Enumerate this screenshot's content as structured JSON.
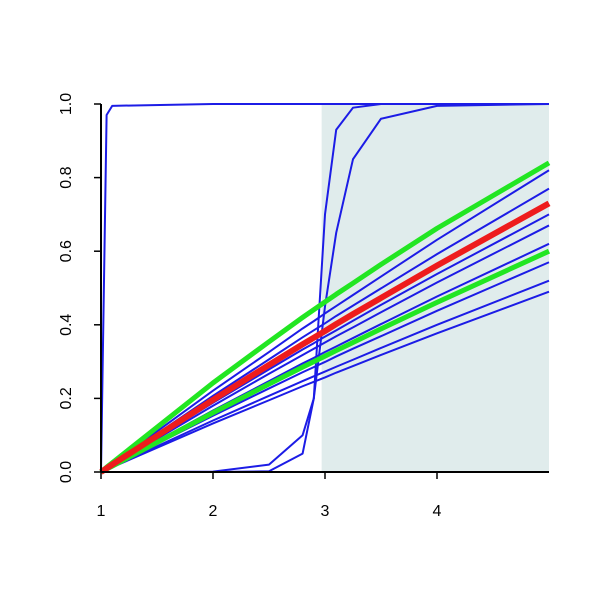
{
  "chart_data": {
    "type": "line",
    "x": [
      1,
      1.05,
      1.1,
      2,
      2.5,
      2.8,
      2.9,
      3,
      3.1,
      3.25,
      3.5,
      4,
      5
    ],
    "xlim": [
      1,
      5
    ],
    "xticks": [
      1,
      2,
      3,
      4
    ],
    "ylim": [
      0,
      1
    ],
    "yticks": [
      {
        "value": 0,
        "label": "0.0"
      },
      {
        "value": 0.2,
        "label": "0.2"
      },
      {
        "value": 0.4,
        "label": "0.4"
      },
      {
        "value": 0.6,
        "label": "0.6"
      },
      {
        "value": 0.8,
        "label": "0.8"
      },
      {
        "value": 1,
        "label": "1.0"
      }
    ],
    "shaded_region": {
      "xlim": [
        2.97,
        5
      ],
      "color": "#e0ecec"
    },
    "series": [
      {
        "color": "#1c1ce6",
        "width": 2,
        "values": [
          0,
          0.011,
          0.022,
          0.221,
          0.326,
          0.39,
          0.41,
          0.431,
          0.451,
          0.481,
          0.531,
          0.631,
          0.82
        ]
      },
      {
        "color": "#1c1ce6",
        "width": 2,
        "values": [
          0,
          0.011,
          0.021,
          0.207,
          0.306,
          0.366,
          0.385,
          0.404,
          0.424,
          0.452,
          0.499,
          0.592,
          0.77
        ]
      },
      {
        "color": "#1c1ce6",
        "width": 2,
        "values": [
          0,
          0.01,
          0.019,
          0.188,
          0.279,
          0.333,
          0.35,
          0.368,
          0.385,
          0.411,
          0.454,
          0.538,
          0.7
        ]
      },
      {
        "color": "#1c1ce6",
        "width": 2,
        "values": [
          0,
          0.009,
          0.018,
          0.18,
          0.267,
          0.318,
          0.335,
          0.352,
          0.369,
          0.393,
          0.434,
          0.515,
          0.67
        ]
      },
      {
        "color": "#1c1ce6",
        "width": 2,
        "values": [
          0,
          0.008,
          0.017,
          0.167,
          0.247,
          0.295,
          0.31,
          0.326,
          0.341,
          0.364,
          0.402,
          0.477,
          0.62
        ]
      },
      {
        "color": "#1c1ce6",
        "width": 2,
        "values": [
          0,
          0.008,
          0.016,
          0.153,
          0.227,
          0.271,
          0.285,
          0.299,
          0.314,
          0.335,
          0.369,
          0.438,
          0.57
        ]
      },
      {
        "color": "#1c1ce6",
        "width": 2,
        "values": [
          0,
          0.007,
          0.014,
          0.14,
          0.207,
          0.247,
          0.26,
          0.273,
          0.286,
          0.305,
          0.337,
          0.4,
          0.52
        ]
      },
      {
        "color": "#1c1ce6",
        "width": 2,
        "values": [
          0,
          0.007,
          0.013,
          0.132,
          0.195,
          0.233,
          0.245,
          0.257,
          0.27,
          0.288,
          0.318,
          0.377,
          0.49
        ]
      },
      {
        "color": "#1c1ce6",
        "width": 2,
        "values": [
          0,
          0.97,
          0.995,
          1,
          1,
          1,
          1,
          1,
          1,
          1,
          1,
          1,
          1
        ]
      },
      {
        "color": "#1c1ce6",
        "width": 2,
        "values": [
          0,
          0,
          0,
          0,
          0.002,
          0.05,
          0.2,
          0.7,
          0.93,
          0.99,
          1,
          1,
          1
        ]
      },
      {
        "color": "#1c1ce6",
        "width": 2,
        "values": [
          0,
          0,
          0,
          0.001,
          0.02,
          0.1,
          0.2,
          0.45,
          0.65,
          0.85,
          0.96,
          0.995,
          1
        ]
      },
      {
        "color": "#22e622",
        "width": 5,
        "values": [
          0,
          0.013,
          0.025,
          0.242,
          0.354,
          0.42,
          0.441,
          0.462,
          0.483,
          0.513,
          0.564,
          0.662,
          0.84
        ]
      },
      {
        "color": "#22e622",
        "width": 5,
        "values": [
          0,
          0.008,
          0.016,
          0.161,
          0.239,
          0.285,
          0.3,
          0.315,
          0.33,
          0.352,
          0.389,
          0.461,
          0.6
        ]
      },
      {
        "color": "#ee1c1c",
        "width": 6,
        "values": [
          0,
          0.01,
          0.02,
          0.196,
          0.291,
          0.347,
          0.365,
          0.383,
          0.402,
          0.429,
          0.473,
          0.561,
          0.73
        ]
      }
    ]
  }
}
